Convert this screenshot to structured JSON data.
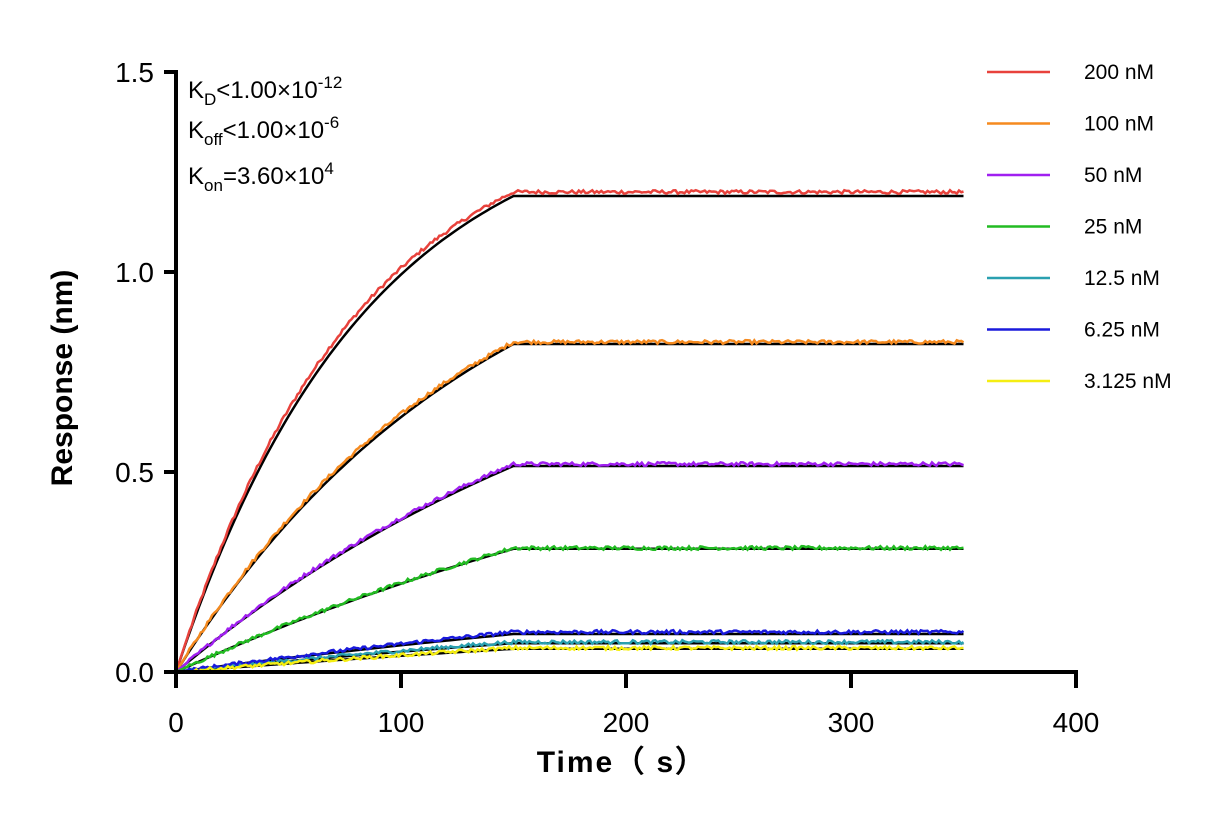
{
  "chart_data": {
    "type": "line",
    "xlabel": "Time（ s）",
    "ylabel": "Response (nm)",
    "xlim": [
      0,
      400
    ],
    "ylim": [
      0,
      1.5
    ],
    "xticks": [
      0,
      100,
      200,
      300,
      400
    ],
    "yticks": [
      0.0,
      0.5,
      1.0,
      1.5
    ],
    "xtick_labels": [
      "0",
      "100",
      "200",
      "300",
      "400"
    ],
    "ytick_labels": [
      "0.0",
      "0.5",
      "1.0",
      "1.5"
    ],
    "grid": false,
    "legend_position": "top-right",
    "annotations": {
      "kd": {
        "main": "K",
        "sub": "D",
        "rel": "<1.00×10",
        "sup": "-12"
      },
      "koff": {
        "main": "K",
        "sub": "off",
        "rel": "<1.00×10",
        "sup": "-6"
      },
      "kon": {
        "main": "K",
        "sub": "on",
        "rel": "=3.60×10",
        "sup": "4"
      }
    },
    "association_end_s": 150,
    "end_s": 350,
    "series": [
      {
        "name": "200 nM",
        "color": "#e8423c",
        "plateau": 1.2,
        "fit_plateau": 1.19,
        "fit_k": 0.0118
      },
      {
        "name": "100 nM",
        "color": "#f58a1f",
        "plateau": 0.825,
        "fit_plateau": 0.82,
        "fit_k": 0.0072
      },
      {
        "name": "50 nM",
        "color": "#a020f0",
        "plateau": 0.52,
        "fit_plateau": 0.515,
        "fit_k": 0.0045
      },
      {
        "name": "25 nM",
        "color": "#22bb22",
        "plateau": 0.31,
        "fit_plateau": 0.308,
        "fit_k": 0.0031
      },
      {
        "name": "12.5 nM",
        "color": "#2aa0b0",
        "plateau": 0.075,
        "fit_plateau": 0.072,
        "fit_k": 0.0024
      },
      {
        "name": "6.25 nM",
        "color": "#1a1adc",
        "plateau": 0.1,
        "fit_plateau": 0.095,
        "fit_k": 0.0022
      },
      {
        "name": "3.125 nM",
        "color": "#f5ee12",
        "plateau": 0.06,
        "fit_plateau": 0.058,
        "fit_k": 0.002
      }
    ],
    "fit_color": "#000000"
  }
}
